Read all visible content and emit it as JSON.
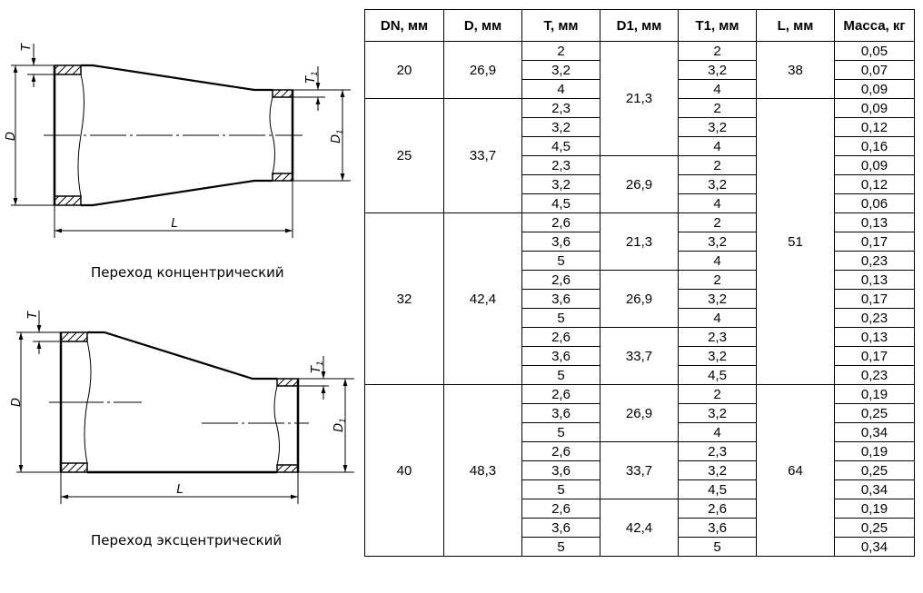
{
  "drawings": {
    "concentric": {
      "caption": "Переход концентрический",
      "labels": {
        "D": "D",
        "T": "T",
        "D1_base": "D",
        "D1_sub": "1",
        "T1_base": "T",
        "T1_sub": "1",
        "L": "L"
      }
    },
    "eccentric": {
      "caption": "Переход эксцентрический",
      "labels": {
        "D": "D",
        "T": "T",
        "D1_base": "D",
        "D1_sub": "1",
        "T1_base": "T",
        "T1_sub": "1",
        "L": "L"
      }
    }
  },
  "table": {
    "headers": [
      "DN, мм",
      "D, мм",
      "T, мм",
      "D1, мм",
      "T1, мм",
      "L, мм",
      "Масса, кг"
    ],
    "columns": [
      [
        {
          "value": "20",
          "span": 3
        },
        {
          "value": "25",
          "span": 6
        },
        {
          "value": "32",
          "span": 9
        },
        {
          "value": "40",
          "span": 9
        }
      ],
      [
        {
          "value": "26,9",
          "span": 3
        },
        {
          "value": "33,7",
          "span": 6
        },
        {
          "value": "42,4",
          "span": 9
        },
        {
          "value": "48,3",
          "span": 9
        }
      ],
      [
        {
          "value": "2",
          "span": 1
        },
        {
          "value": "3,2",
          "span": 1
        },
        {
          "value": "4",
          "span": 1
        },
        {
          "value": "2,3",
          "span": 1
        },
        {
          "value": "3,2",
          "span": 1
        },
        {
          "value": "4,5",
          "span": 1
        },
        {
          "value": "2,3",
          "span": 1
        },
        {
          "value": "3,2",
          "span": 1
        },
        {
          "value": "4,5",
          "span": 1
        },
        {
          "value": "2,6",
          "span": 1
        },
        {
          "value": "3,6",
          "span": 1
        },
        {
          "value": "5",
          "span": 1
        },
        {
          "value": "2,6",
          "span": 1
        },
        {
          "value": "3,6",
          "span": 1
        },
        {
          "value": "5",
          "span": 1
        },
        {
          "value": "2,6",
          "span": 1
        },
        {
          "value": "3,6",
          "span": 1
        },
        {
          "value": "5",
          "span": 1
        },
        {
          "value": "2,6",
          "span": 1
        },
        {
          "value": "3,6",
          "span": 1
        },
        {
          "value": "5",
          "span": 1
        },
        {
          "value": "2,6",
          "span": 1
        },
        {
          "value": "3,6",
          "span": 1
        },
        {
          "value": "5",
          "span": 1
        },
        {
          "value": "2,6",
          "span": 1
        },
        {
          "value": "3,6",
          "span": 1
        },
        {
          "value": "5",
          "span": 1
        }
      ],
      [
        {
          "value": "21,3",
          "span": 6
        },
        {
          "value": "26,9",
          "span": 3
        },
        {
          "value": "21,3",
          "span": 3
        },
        {
          "value": "26,9",
          "span": 3
        },
        {
          "value": "33,7",
          "span": 3
        },
        {
          "value": "26,9",
          "span": 3
        },
        {
          "value": "33,7",
          "span": 3
        },
        {
          "value": "42,4",
          "span": 3
        }
      ],
      [
        {
          "value": "2",
          "span": 1
        },
        {
          "value": "3,2",
          "span": 1
        },
        {
          "value": "4",
          "span": 1
        },
        {
          "value": "2",
          "span": 1
        },
        {
          "value": "3,2",
          "span": 1
        },
        {
          "value": "4",
          "span": 1
        },
        {
          "value": "2",
          "span": 1
        },
        {
          "value": "3,2",
          "span": 1
        },
        {
          "value": "4",
          "span": 1
        },
        {
          "value": "2",
          "span": 1
        },
        {
          "value": "3,2",
          "span": 1
        },
        {
          "value": "4",
          "span": 1
        },
        {
          "value": "2",
          "span": 1
        },
        {
          "value": "3,2",
          "span": 1
        },
        {
          "value": "4",
          "span": 1
        },
        {
          "value": "2,3",
          "span": 1
        },
        {
          "value": "3,2",
          "span": 1
        },
        {
          "value": "4,5",
          "span": 1
        },
        {
          "value": "2",
          "span": 1
        },
        {
          "value": "3,2",
          "span": 1
        },
        {
          "value": "4",
          "span": 1
        },
        {
          "value": "2,3",
          "span": 1
        },
        {
          "value": "3,2",
          "span": 1
        },
        {
          "value": "4,5",
          "span": 1
        },
        {
          "value": "2,6",
          "span": 1
        },
        {
          "value": "3,6",
          "span": 1
        },
        {
          "value": "5",
          "span": 1
        }
      ],
      [
        {
          "value": "38",
          "span": 3
        },
        {
          "value": "51",
          "span": 15
        },
        {
          "value": "64",
          "span": 9
        }
      ],
      [
        {
          "value": "0,05",
          "span": 1
        },
        {
          "value": "0,07",
          "span": 1
        },
        {
          "value": "0,09",
          "span": 1
        },
        {
          "value": "0,09",
          "span": 1
        },
        {
          "value": "0,12",
          "span": 1
        },
        {
          "value": "0,16",
          "span": 1
        },
        {
          "value": "0,09",
          "span": 1
        },
        {
          "value": "0,12",
          "span": 1
        },
        {
          "value": "0,06",
          "span": 1
        },
        {
          "value": "0,13",
          "span": 1
        },
        {
          "value": "0,17",
          "span": 1
        },
        {
          "value": "0,23",
          "span": 1
        },
        {
          "value": "0,13",
          "span": 1
        },
        {
          "value": "0,17",
          "span": 1
        },
        {
          "value": "0,23",
          "span": 1
        },
        {
          "value": "0,13",
          "span": 1
        },
        {
          "value": "0,17",
          "span": 1
        },
        {
          "value": "0,23",
          "span": 1
        },
        {
          "value": "0,19",
          "span": 1
        },
        {
          "value": "0,25",
          "span": 1
        },
        {
          "value": "0,34",
          "span": 1
        },
        {
          "value": "0,19",
          "span": 1
        },
        {
          "value": "0,25",
          "span": 1
        },
        {
          "value": "0,34",
          "span": 1
        },
        {
          "value": "0,19",
          "span": 1
        },
        {
          "value": "0,25",
          "span": 1
        },
        {
          "value": "0,34",
          "span": 1
        }
      ]
    ]
  }
}
